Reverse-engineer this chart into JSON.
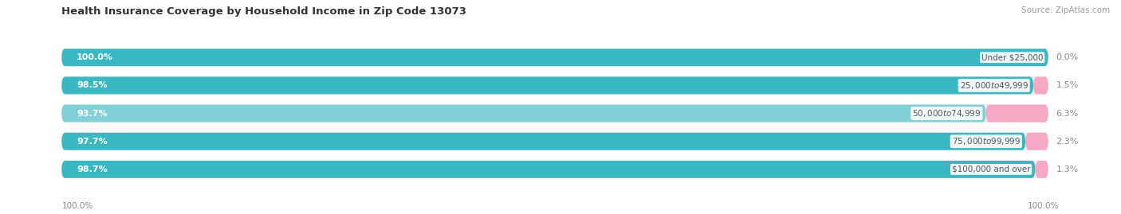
{
  "title": "Health Insurance Coverage by Household Income in Zip Code 13073",
  "source": "Source: ZipAtlas.com",
  "categories": [
    "Under $25,000",
    "$25,000 to $49,999",
    "$50,000 to $74,999",
    "$75,000 to $99,999",
    "$100,000 and over"
  ],
  "with_coverage": [
    100.0,
    98.5,
    93.7,
    97.7,
    98.7
  ],
  "without_coverage": [
    0.0,
    1.5,
    6.3,
    2.3,
    1.3
  ],
  "with_coverage_color": "#3ab8c2",
  "with_coverage_color_light": "#82d0d8",
  "without_coverage_color": "#f7a8c4",
  "bar_bg_color": "#efefef",
  "background_color": "#ffffff",
  "left_label_color": "#ffffff",
  "right_label_color": "#888888",
  "center_label_color": "#555555",
  "title_fontsize": 9.5,
  "label_fontsize": 8.0,
  "tick_fontsize": 7.5,
  "legend_fontsize": 8.0,
  "bottom_left_label": "100.0%",
  "bottom_right_label": "100.0%"
}
